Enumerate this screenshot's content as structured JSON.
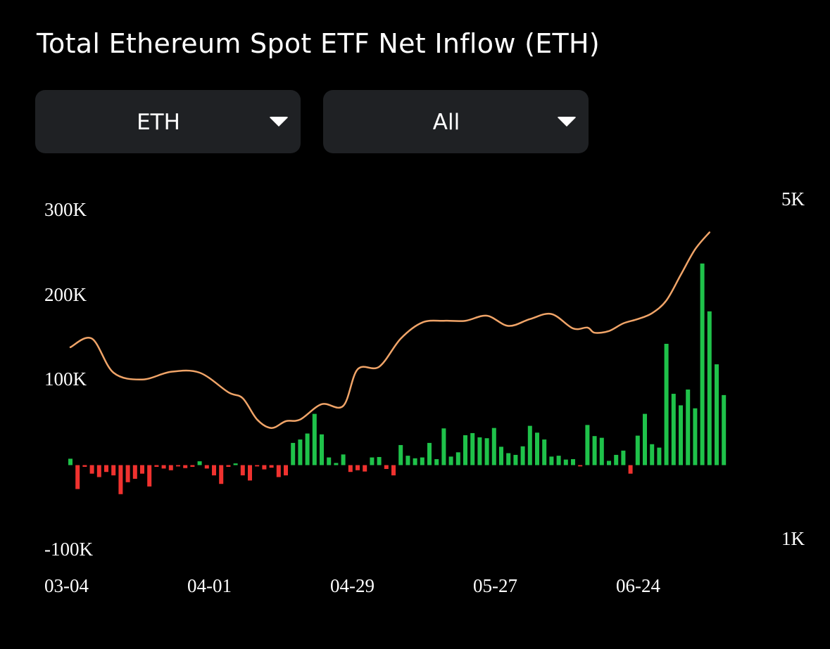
{
  "title": "Total Ethereum Spot ETF Net Inflow (ETH)",
  "filters": {
    "unit": "ETH",
    "range": "All"
  },
  "colors": {
    "positive": "#1fc24a",
    "negative": "#f0322f",
    "line": "#f0a468",
    "select_bg": "#1f2124"
  },
  "icons": {
    "dropdown": "caret-down-icon"
  },
  "chart_data": {
    "type": "bar",
    "left_axis": {
      "ticks": [
        "300K",
        "200K",
        "100K",
        "-100K"
      ],
      "tick_values": [
        300000,
        200000,
        100000,
        -100000
      ],
      "ylim": [
        -100000,
        300000
      ]
    },
    "right_axis": {
      "ticks": [
        "5K",
        "1K"
      ],
      "tick_values": [
        5000,
        1000
      ],
      "ylim": [
        1000,
        5000
      ]
    },
    "x_ticks": [
      "03-04",
      "04-01",
      "04-29",
      "05-27",
      "06-24"
    ],
    "series": [
      {
        "kind": "bar",
        "axis": "left",
        "values": [
          7500,
          -28000,
          -2000,
          -10000,
          -14000,
          -8000,
          -12000,
          -34000,
          -20000,
          -16000,
          -10000,
          -25000,
          -2000,
          -4000,
          -6000,
          -1500,
          -3500,
          -2000,
          4500,
          -4000,
          -12000,
          -22000,
          -2000,
          2000,
          -12000,
          -18000,
          -1500,
          -5000,
          -3000,
          -14000,
          -12000,
          26000,
          30000,
          37000,
          60000,
          36000,
          9000,
          2500,
          12500,
          -8000,
          -6000,
          -7500,
          9000,
          9500,
          -4500,
          -12000,
          23500,
          11000,
          8000,
          9000,
          26000,
          7000,
          43000,
          10000,
          15000,
          35000,
          37500,
          32500,
          31500,
          43500,
          21500,
          14000,
          12000,
          22000,
          46000,
          38000,
          30000,
          10000,
          11000,
          6500,
          7000,
          -1500,
          47000,
          34000,
          32000,
          5000,
          12000,
          17000,
          -10000,
          34500,
          60000,
          24500,
          20500,
          142000,
          83500,
          70000,
          88500,
          66500,
          236000,
          180000,
          118000,
          82000
        ]
      },
      {
        "kind": "line",
        "axis": "right",
        "points": [
          [
            0,
            3250
          ],
          [
            3,
            3350
          ],
          [
            6,
            2950
          ],
          [
            10,
            2870
          ],
          [
            14,
            2960
          ],
          [
            18,
            2950
          ],
          [
            22,
            2720
          ],
          [
            24,
            2650
          ],
          [
            26,
            2400
          ],
          [
            28,
            2300
          ],
          [
            30,
            2380
          ],
          [
            32,
            2400
          ],
          [
            35,
            2580
          ],
          [
            38,
            2560
          ],
          [
            40,
            2990
          ],
          [
            43,
            3020
          ],
          [
            46,
            3350
          ],
          [
            49,
            3540
          ],
          [
            52,
            3560
          ],
          [
            55,
            3560
          ],
          [
            58,
            3620
          ],
          [
            61,
            3500
          ],
          [
            64,
            3580
          ],
          [
            67,
            3640
          ],
          [
            70,
            3470
          ],
          [
            72,
            3480
          ],
          [
            73,
            3420
          ],
          [
            75,
            3440
          ],
          [
            77,
            3530
          ],
          [
            79,
            3580
          ],
          [
            81,
            3650
          ],
          [
            83,
            3800
          ],
          [
            85,
            4100
          ],
          [
            87,
            4400
          ],
          [
            89,
            4600
          ]
        ]
      }
    ]
  }
}
